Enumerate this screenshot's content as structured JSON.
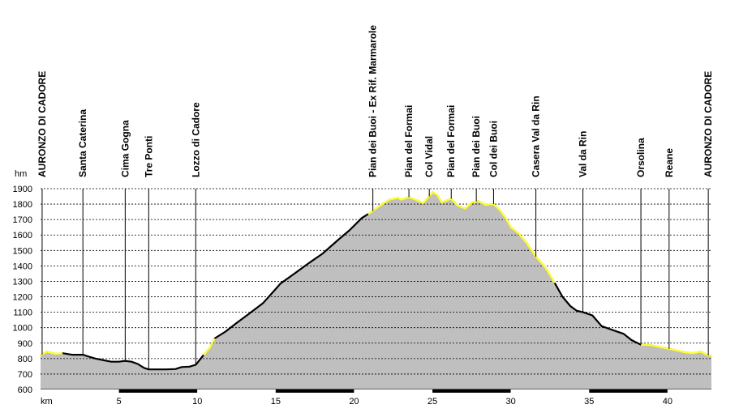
{
  "chart_data": {
    "type": "area",
    "y_unit": "hm",
    "x_unit": "km",
    "ylim": [
      600,
      1900
    ],
    "xlim": [
      0,
      42.8
    ],
    "y_ticks": [
      600,
      700,
      800,
      900,
      1000,
      1100,
      1200,
      1300,
      1400,
      1500,
      1600,
      1700,
      1800,
      1900
    ],
    "x_ticks": [
      5,
      10,
      15,
      20,
      25,
      30,
      35,
      40
    ],
    "grid": true,
    "colors": {
      "fill": "#bfbfbf",
      "profile": "#000000",
      "highlight": "#ffff33",
      "grid": "#000000"
    },
    "waypoints": [
      {
        "name": "AURONZO DI CADORE",
        "km": 0.1
      },
      {
        "name": "Santa Caterina",
        "km": 2.7
      },
      {
        "name": "Cima Gogna",
        "km": 5.4
      },
      {
        "name": "Tre Ponti",
        "km": 6.9
      },
      {
        "name": "Lozzo di Cadore",
        "km": 9.9
      },
      {
        "name": "Pian dei Buoi - Ex Rif. Marmarole",
        "km": 21.2
      },
      {
        "name": "Pian del Formai",
        "km": 23.5
      },
      {
        "name": "Col Vidal",
        "km": 24.8
      },
      {
        "name": "Pian del Formai",
        "km": 26.2
      },
      {
        "name": "Pian dei Buoi",
        "km": 27.8
      },
      {
        "name": "Col dei Buoi",
        "km": 28.9
      },
      {
        "name": "Casera Val da Rin",
        "km": 31.6
      },
      {
        "name": "Val da Rin",
        "km": 34.6
      },
      {
        "name": "Orsolina",
        "km": 38.3
      },
      {
        "name": "Reane",
        "km": 40.1
      },
      {
        "name": "AURONZO DI CADORE",
        "km": 42.6
      }
    ],
    "profile": [
      [
        0,
        820
      ],
      [
        0.4,
        845
      ],
      [
        1.0,
        830
      ],
      [
        1.4,
        835
      ],
      [
        2.0,
        825
      ],
      [
        2.7,
        825
      ],
      [
        3.0,
        815
      ],
      [
        3.5,
        800
      ],
      [
        4.0,
        790
      ],
      [
        4.5,
        780
      ],
      [
        5.0,
        780
      ],
      [
        5.4,
        785
      ],
      [
        5.8,
        780
      ],
      [
        6.2,
        765
      ],
      [
        6.6,
        740
      ],
      [
        6.9,
        730
      ],
      [
        7.5,
        730
      ],
      [
        8.0,
        730
      ],
      [
        8.6,
        732
      ],
      [
        9.0,
        745
      ],
      [
        9.5,
        748
      ],
      [
        9.9,
        760
      ],
      [
        10.3,
        810
      ],
      [
        10.8,
        870
      ],
      [
        11.1,
        930
      ],
      [
        11.8,
        975
      ],
      [
        12.5,
        1030
      ],
      [
        13.3,
        1090
      ],
      [
        14.2,
        1160
      ],
      [
        15.0,
        1250
      ],
      [
        15.3,
        1285
      ],
      [
        16.2,
        1350
      ],
      [
        17.0,
        1410
      ],
      [
        18.0,
        1480
      ],
      [
        19.0,
        1570
      ],
      [
        19.7,
        1630
      ],
      [
        20.5,
        1710
      ],
      [
        21.2,
        1755
      ],
      [
        21.8,
        1800
      ],
      [
        22.3,
        1830
      ],
      [
        22.8,
        1840
      ],
      [
        23.0,
        1828
      ],
      [
        23.5,
        1845
      ],
      [
        24.0,
        1825
      ],
      [
        24.4,
        1805
      ],
      [
        24.8,
        1850
      ],
      [
        25.0,
        1875
      ],
      [
        25.3,
        1860
      ],
      [
        25.6,
        1810
      ],
      [
        26.2,
        1835
      ],
      [
        26.6,
        1790
      ],
      [
        27.1,
        1770
      ],
      [
        27.5,
        1810
      ],
      [
        27.9,
        1820
      ],
      [
        28.4,
        1795
      ],
      [
        28.9,
        1800
      ],
      [
        29.3,
        1760
      ],
      [
        29.6,
        1720
      ],
      [
        30.0,
        1650
      ],
      [
        30.5,
        1610
      ],
      [
        31.0,
        1550
      ],
      [
        31.6,
        1460
      ],
      [
        32.2,
        1390
      ],
      [
        32.8,
        1290
      ],
      [
        33.3,
        1200
      ],
      [
        33.8,
        1140
      ],
      [
        34.2,
        1110
      ],
      [
        34.6,
        1100
      ],
      [
        35.2,
        1080
      ],
      [
        35.8,
        1010
      ],
      [
        36.5,
        985
      ],
      [
        37.2,
        960
      ],
      [
        37.7,
        920
      ],
      [
        38.3,
        890
      ],
      [
        39.0,
        885
      ],
      [
        40.0,
        865
      ],
      [
        40.5,
        855
      ],
      [
        41.1,
        840
      ],
      [
        41.6,
        835
      ],
      [
        42.1,
        845
      ],
      [
        42.6,
        820
      ],
      [
        42.8,
        815
      ]
    ],
    "highlight_segments": [
      [
        0,
        1.4
      ],
      [
        10.4,
        11.1
      ],
      [
        20.9,
        32.8
      ],
      [
        38.3,
        42.8
      ]
    ]
  }
}
